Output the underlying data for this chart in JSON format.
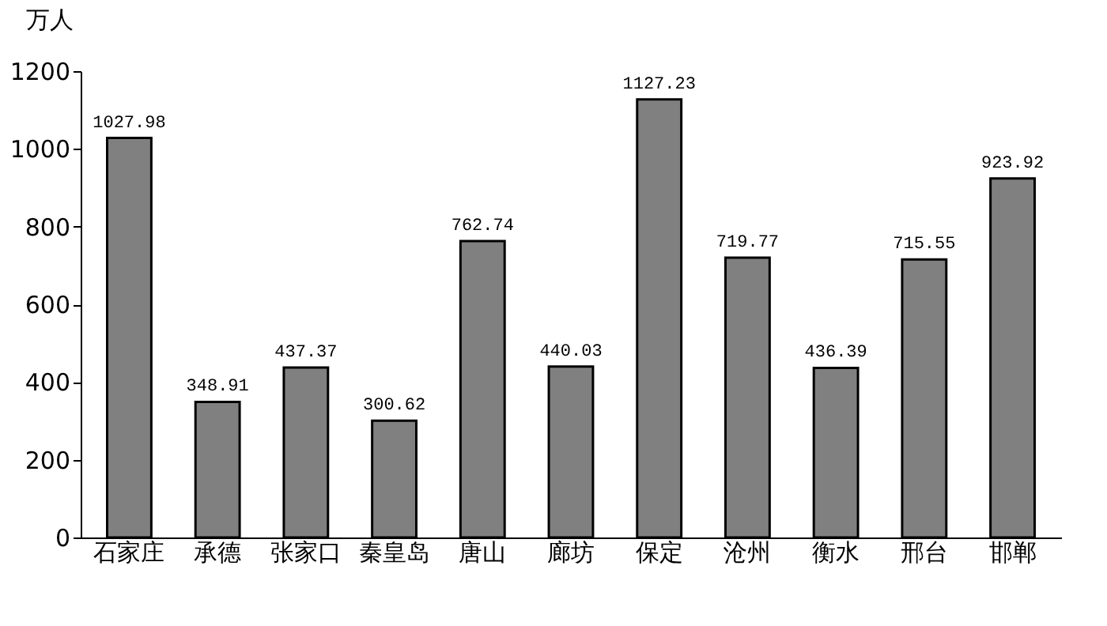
{
  "chart_data": {
    "type": "bar",
    "ylabel": "万人",
    "categories": [
      "石家庄",
      "承德",
      "张家口",
      "秦皇岛",
      "唐山",
      "廊坊",
      "保定",
      "沧州",
      "衡水",
      "邢台",
      "邯郸"
    ],
    "values": [
      1027.98,
      348.91,
      437.37,
      300.62,
      762.74,
      440.03,
      1127.23,
      719.77,
      436.39,
      715.55,
      923.92
    ],
    "color": "#808080",
    "ylim": [
      0,
      1200
    ],
    "yticks": [
      0,
      200,
      400,
      600,
      800,
      1000,
      1200
    ],
    "grid": false,
    "data_labels": true
  }
}
